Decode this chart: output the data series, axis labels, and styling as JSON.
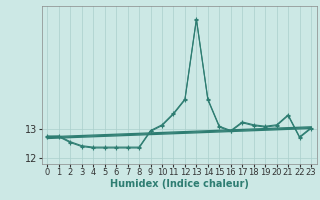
{
  "xlabel": "Humidex (Indice chaleur)",
  "background_color": "#cce8e5",
  "grid_color": "#aacfcc",
  "line_color": "#2e7d72",
  "xlim": [
    -0.5,
    23.5
  ],
  "ylim": [
    11.78,
    17.3
  ],
  "yticks": [
    12,
    13
  ],
  "xticks": [
    0,
    1,
    2,
    3,
    4,
    5,
    6,
    7,
    8,
    9,
    10,
    11,
    12,
    13,
    14,
    15,
    16,
    17,
    18,
    19,
    20,
    21,
    22,
    23
  ],
  "line1_x": [
    0,
    1,
    2,
    3,
    4,
    5,
    6,
    7,
    8,
    9,
    10,
    11,
    12,
    13,
    14,
    15,
    16,
    17,
    18,
    19,
    20,
    21,
    22,
    23
  ],
  "line1_y": [
    12.76,
    12.76,
    12.56,
    12.42,
    12.37,
    12.37,
    12.37,
    12.37,
    12.37,
    12.95,
    13.15,
    13.55,
    14.05,
    16.85,
    14.05,
    13.1,
    12.95,
    13.25,
    13.15,
    13.1,
    13.15,
    13.5,
    12.73,
    13.05
  ],
  "line2_x": [
    0,
    1,
    2,
    3,
    4,
    5,
    6,
    7,
    8,
    9,
    10,
    11,
    12,
    13,
    14,
    15,
    16,
    17,
    18,
    19,
    20,
    21,
    22,
    23
  ],
  "line2_y": [
    12.73,
    12.73,
    12.53,
    12.39,
    12.34,
    12.34,
    12.34,
    12.34,
    12.34,
    12.92,
    13.12,
    13.52,
    14.02,
    16.82,
    14.02,
    13.07,
    12.92,
    13.22,
    13.12,
    13.07,
    13.12,
    13.47,
    12.7,
    13.02
  ],
  "trend1_x": [
    0,
    23
  ],
  "trend1_y": [
    12.73,
    13.08
  ],
  "trend2_x": [
    0,
    23
  ],
  "trend2_y": [
    12.7,
    13.05
  ],
  "trend3_x": [
    0,
    23
  ],
  "trend3_y": [
    12.67,
    13.02
  ],
  "xlabel_color": "#2e7d72",
  "xlabel_fontsize": 7,
  "tick_fontsize": 6,
  "ytick_fontsize": 7
}
